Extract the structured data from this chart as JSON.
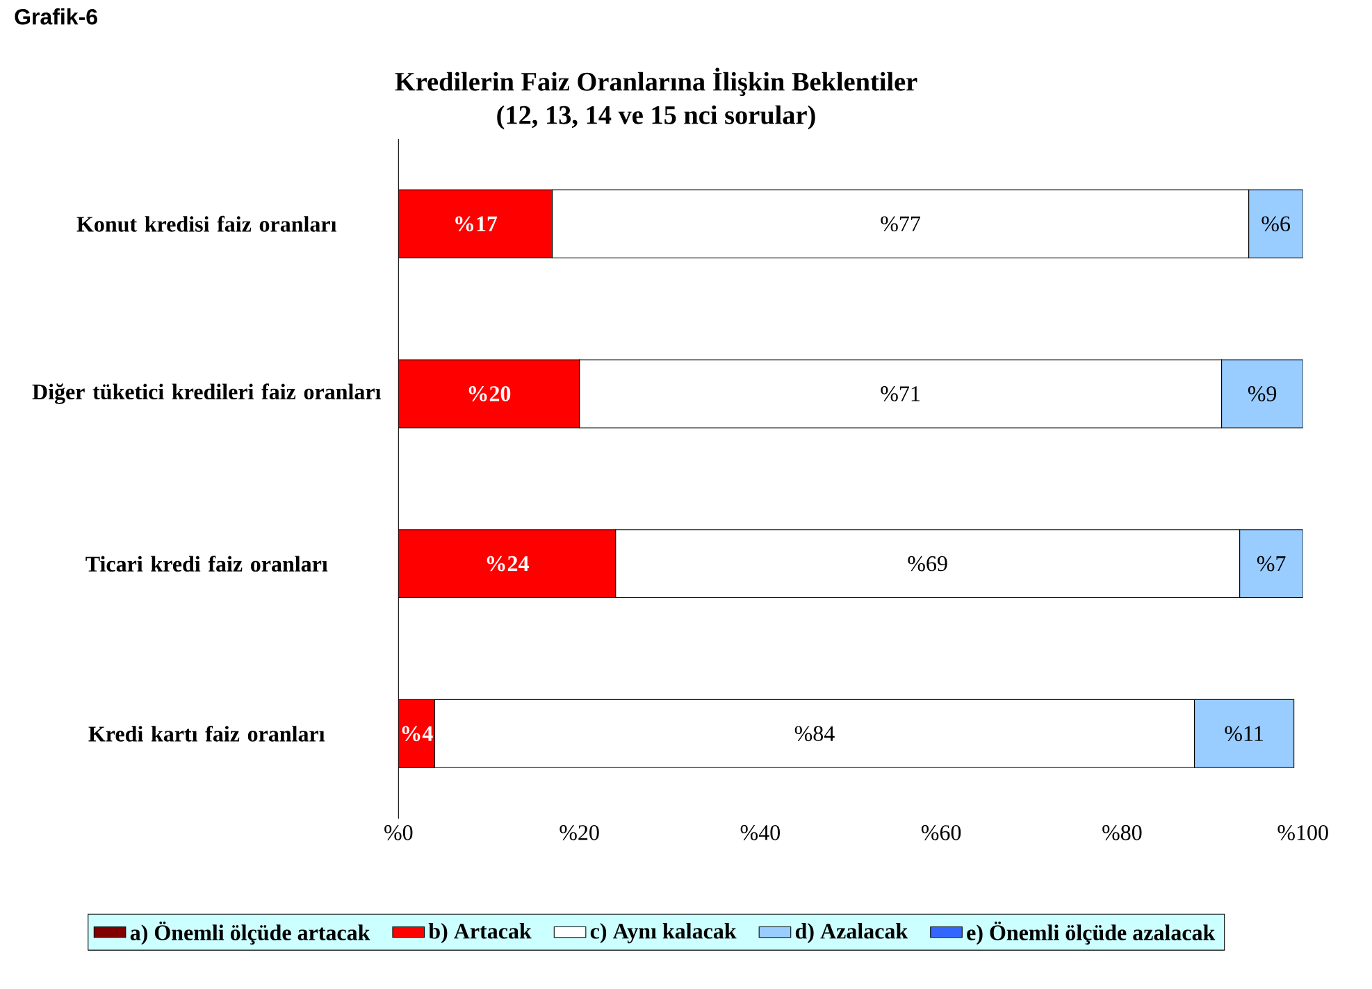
{
  "chart_data": {
    "type": "bar",
    "orientation": "horizontal",
    "stacked": true,
    "title": "Kredilerin Faiz Oranlarına İlişkin Beklentiler",
    "subtitle": "(12, 13, 14 ve 15 nci sorular)",
    "annotations": [
      "Grafik-6"
    ],
    "categories": [
      "Konut kredisi faiz oranları",
      "Diğer tüketici kredileri faiz oranları",
      "Ticari kredi faiz oranları",
      "Kredi kartı faiz oranları"
    ],
    "series": [
      {
        "name": "a) Önemli ölçüde artacak",
        "color": "#800000",
        "values": [
          null,
          null,
          null,
          null
        ]
      },
      {
        "name": "b) Artacak",
        "color": "#ff0000",
        "values": [
          17,
          20,
          24,
          4
        ],
        "value_labels": [
          "%17",
          "%20",
          "%24",
          "%4"
        ]
      },
      {
        "name": "c) Aynı kalacak",
        "color": "#ffffff",
        "values": [
          77,
          71,
          69,
          84
        ],
        "value_labels": [
          "%77",
          "%71",
          "%69",
          "%84"
        ]
      },
      {
        "name": "d) Azalacak",
        "color": "#99ccff",
        "values": [
          6,
          9,
          7,
          11
        ],
        "value_labels": [
          "%6",
          "%9",
          "%7",
          "%11"
        ]
      },
      {
        "name": "e) Önemli ölçüde azalacak",
        "color": "#3366ff",
        "values": [
          null,
          null,
          null,
          null
        ]
      }
    ],
    "xlim": [
      0,
      100
    ],
    "xticks": [
      {
        "value": 0,
        "label": "%0"
      },
      {
        "value": 20,
        "label": "%20"
      },
      {
        "value": 40,
        "label": "%40"
      },
      {
        "value": 60,
        "label": "%60"
      },
      {
        "value": 80,
        "label": "%80"
      },
      {
        "value": 100,
        "label": "%100"
      }
    ],
    "legend": "bottom",
    "grid": false
  }
}
